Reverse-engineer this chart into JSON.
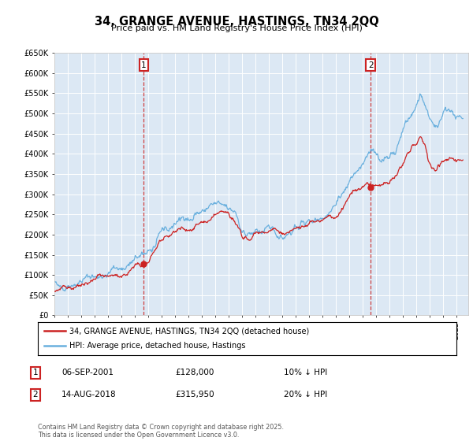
{
  "title": "34, GRANGE AVENUE, HASTINGS, TN34 2QQ",
  "subtitle": "Price paid vs. HM Land Registry's House Price Index (HPI)",
  "ylabel_ticks": [
    "£0",
    "£50K",
    "£100K",
    "£150K",
    "£200K",
    "£250K",
    "£300K",
    "£350K",
    "£400K",
    "£450K",
    "£500K",
    "£550K",
    "£600K",
    "£650K"
  ],
  "ytick_vals": [
    0,
    50000,
    100000,
    150000,
    200000,
    250000,
    300000,
    350000,
    400000,
    450000,
    500000,
    550000,
    600000,
    650000
  ],
  "ylim": [
    0,
    650000
  ],
  "xlim_start": 1995.0,
  "xlim_end": 2025.9,
  "hpi_color": "#6ab0de",
  "price_color": "#cc2222",
  "marker_color": "#cc2222",
  "sale1_x": 2001.68,
  "sale1_y": 128000,
  "sale1_label": "1",
  "sale2_x": 2018.62,
  "sale2_y": 315950,
  "sale2_label": "2",
  "legend_line1": "34, GRANGE AVENUE, HASTINGS, TN34 2QQ (detached house)",
  "legend_line2": "HPI: Average price, detached house, Hastings",
  "ann1_num": "1",
  "ann1_date": "06-SEP-2001",
  "ann1_price": "£128,000",
  "ann1_hpi": "10% ↓ HPI",
  "ann2_num": "2",
  "ann2_date": "14-AUG-2018",
  "ann2_price": "£315,950",
  "ann2_hpi": "20% ↓ HPI",
  "footer": "Contains HM Land Registry data © Crown copyright and database right 2025.\nThis data is licensed under the Open Government Licence v3.0.",
  "plot_bg_color": "#dce8f4",
  "grid_color": "#ffffff",
  "fig_bg_color": "#ffffff"
}
